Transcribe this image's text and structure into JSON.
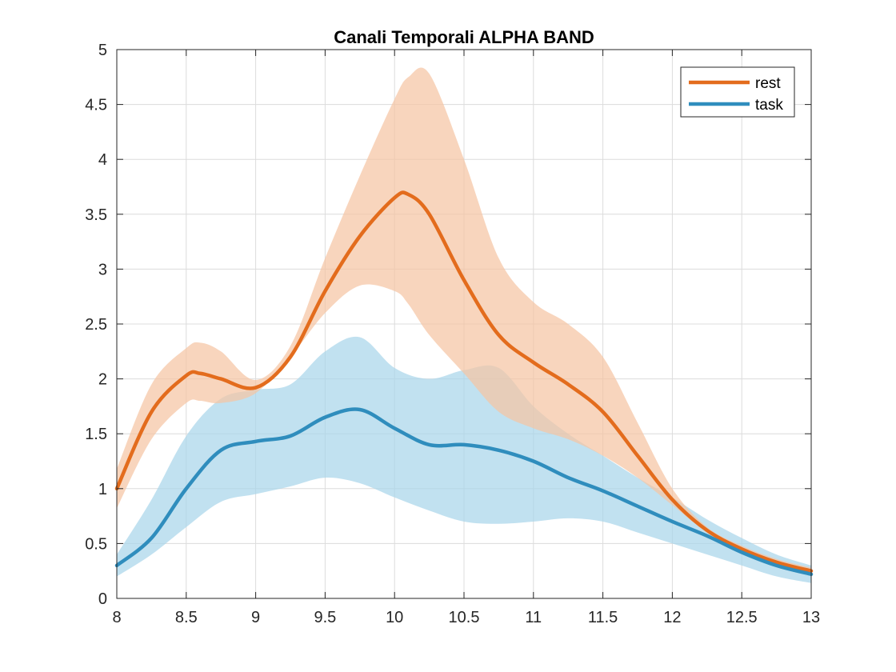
{
  "chart_data": {
    "type": "line",
    "title": "Canali Temporali ALPHA BAND",
    "xlabel": "",
    "ylabel": "",
    "xlim": [
      8,
      13
    ],
    "ylim": [
      0,
      5
    ],
    "grid": true,
    "legend_position": "top-right",
    "x_ticks": [
      "8",
      "8.5",
      "9",
      "9.5",
      "10",
      "10.5",
      "11",
      "11.5",
      "12",
      "12.5",
      "13"
    ],
    "y_ticks": [
      "0",
      "0.5",
      "1",
      "1.5",
      "2",
      "2.5",
      "3",
      "3.5",
      "4",
      "4.5",
      "5"
    ],
    "series": [
      {
        "name": "rest",
        "color": "#e36c1d",
        "band_color": "#f5c5a3",
        "x": [
          8.0,
          8.25,
          8.5,
          8.6,
          8.75,
          9.0,
          9.25,
          9.5,
          9.75,
          10.0,
          10.1,
          10.25,
          10.5,
          10.75,
          11.0,
          11.25,
          11.5,
          11.75,
          12.0,
          12.25,
          12.5,
          12.75,
          13.0
        ],
        "y": [
          1.0,
          1.7,
          2.03,
          2.05,
          2.0,
          1.92,
          2.2,
          2.8,
          3.3,
          3.65,
          3.68,
          3.5,
          2.9,
          2.4,
          2.15,
          1.95,
          1.7,
          1.3,
          0.9,
          0.62,
          0.45,
          0.33,
          0.25
        ],
        "lower": [
          0.82,
          1.45,
          1.78,
          1.8,
          1.78,
          1.87,
          2.2,
          2.6,
          2.85,
          2.8,
          2.68,
          2.4,
          2.05,
          1.7,
          1.55,
          1.45,
          1.3,
          1.1,
          0.85,
          0.6,
          0.43,
          0.31,
          0.22
        ],
        "upper": [
          1.18,
          1.95,
          2.28,
          2.33,
          2.25,
          1.99,
          2.3,
          3.1,
          3.85,
          4.55,
          4.75,
          4.78,
          4.0,
          3.1,
          2.7,
          2.5,
          2.2,
          1.6,
          1.0,
          0.65,
          0.48,
          0.36,
          0.28
        ]
      },
      {
        "name": "task",
        "color": "#2f8dbd",
        "band_color": "#a9d6ea",
        "x": [
          8.0,
          8.25,
          8.5,
          8.75,
          9.0,
          9.25,
          9.5,
          9.75,
          10.0,
          10.25,
          10.5,
          10.75,
          11.0,
          11.25,
          11.5,
          11.75,
          12.0,
          12.25,
          12.5,
          12.75,
          13.0
        ],
        "y": [
          0.3,
          0.55,
          1.0,
          1.35,
          1.43,
          1.48,
          1.65,
          1.72,
          1.55,
          1.4,
          1.4,
          1.35,
          1.25,
          1.1,
          0.98,
          0.84,
          0.7,
          0.57,
          0.42,
          0.3,
          0.22
        ],
        "lower": [
          0.2,
          0.4,
          0.65,
          0.88,
          0.95,
          1.02,
          1.1,
          1.05,
          0.92,
          0.8,
          0.7,
          0.68,
          0.7,
          0.73,
          0.7,
          0.6,
          0.5,
          0.4,
          0.3,
          0.2,
          0.14
        ],
        "upper": [
          0.4,
          0.9,
          1.48,
          1.82,
          1.9,
          1.95,
          2.25,
          2.38,
          2.1,
          2.0,
          2.08,
          2.1,
          1.75,
          1.5,
          1.3,
          1.1,
          0.92,
          0.72,
          0.55,
          0.4,
          0.3
        ]
      }
    ]
  }
}
